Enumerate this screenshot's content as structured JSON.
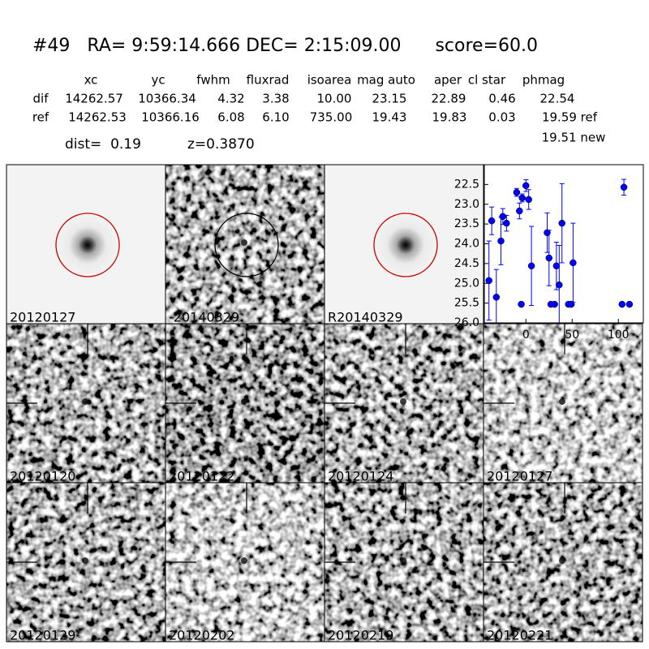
{
  "header": {
    "title": "#49   RA= 9:59:14.666 DEC= 2:15:09.00      score=60.0"
  },
  "table": {
    "columns": [
      "xc",
      "yc",
      "fwhm",
      "fluxrad",
      "isoarea",
      "mag auto",
      "aper",
      "cl star",
      "phmag"
    ],
    "rows": [
      {
        "label": "dif",
        "cells": [
          "14262.57",
          "10366.34",
          "4.32",
          "3.38",
          "10.00",
          "23.15",
          "22.89",
          "0.46",
          "22.54"
        ]
      },
      {
        "label": "ref",
        "cells": [
          "14262.53",
          "10366.16",
          "6.08",
          "6.10",
          "735.00",
          "19.43",
          "19.83",
          "0.03",
          "19.59 ref"
        ]
      }
    ],
    "extra": "19.51 new"
  },
  "dist": "dist=  0.19",
  "z": "z=0.3870",
  "panels": [
    {
      "label": "20120127",
      "circle": "#cc0000"
    },
    {
      "label": "-20140329",
      "circle": "#000000"
    },
    {
      "label": "R20140329",
      "circle": "#cc0000"
    },
    {
      "label": "20120120"
    },
    {
      "label": "20120122"
    },
    {
      "label": "20120124"
    },
    {
      "label": "20120127",
      "highlight": "#ff0000"
    },
    {
      "label": "20120129"
    },
    {
      "label": "20120202"
    },
    {
      "label": "20120219"
    },
    {
      "label": "20120221"
    }
  ],
  "chart_data": {
    "type": "errorbar",
    "color": "#0000ff",
    "x": [
      -40,
      -37,
      -32,
      -27,
      -25,
      -21,
      -10,
      -7,
      -5,
      -4,
      0,
      3,
      6,
      23,
      25,
      27,
      31,
      33,
      36,
      39,
      46,
      49,
      51,
      104,
      106,
      112
    ],
    "values": [
      24.93,
      23.42,
      25.35,
      23.93,
      23.31,
      23.48,
      22.7,
      23.17,
      25.53,
      22.84,
      22.53,
      22.88,
      24.56,
      23.72,
      24.36,
      25.53,
      25.53,
      24.56,
      25.04,
      23.48,
      25.53,
      25.53,
      24.48,
      25.53,
      22.57,
      25.53
    ],
    "errors": [
      1.0,
      0.35,
      0.7,
      0.6,
      0.2,
      0.2,
      0.1,
      0.2,
      0,
      0.1,
      0.15,
      0.25,
      1.0,
      0.5,
      0.7,
      0,
      0,
      0.6,
      1.0,
      1.0,
      0,
      0,
      1.0,
      0,
      0.2,
      0
    ],
    "xlim": [
      -45,
      127
    ],
    "ylim": [
      22,
      26
    ],
    "y_inverted": true,
    "xticks": [
      0,
      50,
      100
    ],
    "yticks": [
      22.5,
      {
        "value": 23,
        "label": "23.0"
      },
      23.5,
      {
        "value": 24,
        "label": "24.0"
      },
      24.5,
      {
        "value": 25,
        "label": "25.0"
      },
      25.5,
      {
        "value": 26,
        "label": "26.0"
      }
    ]
  }
}
